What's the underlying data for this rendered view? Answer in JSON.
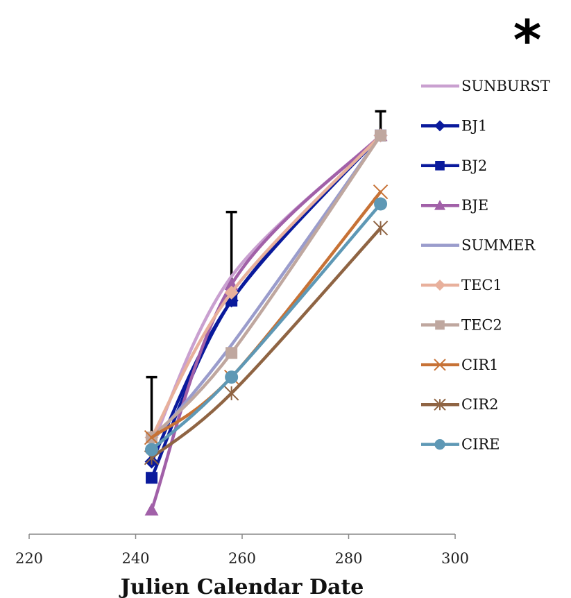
{
  "chart_data": {
    "type": "line",
    "xlabel": "Julien Calendar Date",
    "ylabel": "",
    "xlim": [
      220,
      300
    ],
    "xticks": [
      220,
      240,
      260,
      280,
      300
    ],
    "annotation": "*",
    "grid": false,
    "legend_position": "right",
    "series": [
      {
        "name": "SUNBURST",
        "color": "#C9A0D0",
        "marker": "none",
        "x": [
          243,
          258,
          286
        ],
        "y": [
          0.22,
          0.64,
          0.99
        ]
      },
      {
        "name": "BJ1",
        "color": "#0A1A9C",
        "marker": "diamond",
        "x": [
          243,
          258,
          286
        ],
        "y": [
          0.18,
          0.58,
          0.99
        ]
      },
      {
        "name": "BJ2",
        "color": "#0A1A9C",
        "marker": "square",
        "x": [
          243,
          258,
          286
        ],
        "y": [
          0.14,
          0.58,
          0.99
        ]
      },
      {
        "name": "BJE",
        "color": "#A160A8",
        "marker": "triangle",
        "x": [
          243,
          258,
          286
        ],
        "y": [
          0.06,
          0.62,
          0.99
        ]
      },
      {
        "name": "SUMMER",
        "color": "#9A9CCC",
        "marker": "none",
        "x": [
          243,
          258,
          286
        ],
        "y": [
          0.23,
          0.47,
          0.99
        ]
      },
      {
        "name": "TEC1",
        "color": "#E8B09C",
        "marker": "diamond",
        "x": [
          243,
          258,
          286
        ],
        "y": [
          0.24,
          0.6,
          0.99
        ]
      },
      {
        "name": "TEC2",
        "color": "#BFA79F",
        "marker": "square",
        "x": [
          243,
          258,
          286
        ],
        "y": [
          0.24,
          0.45,
          0.99
        ]
      },
      {
        "name": "CIR1",
        "color": "#C77236",
        "marker": "x",
        "x": [
          243,
          258,
          286
        ],
        "y": [
          0.24,
          0.39,
          0.85
        ]
      },
      {
        "name": "CIR2",
        "color": "#8F6443",
        "marker": "star",
        "x": [
          243,
          258,
          286
        ],
        "y": [
          0.19,
          0.35,
          0.76
        ]
      },
      {
        "name": "CIRE",
        "color": "#5E98B5",
        "marker": "circle",
        "x": [
          243,
          258,
          286
        ],
        "y": [
          0.21,
          0.39,
          0.82
        ]
      }
    ],
    "error_bars": [
      {
        "x": 243,
        "y": 0.24,
        "upper": 0.39
      },
      {
        "x": 258,
        "y": 0.62,
        "upper": 0.8
      },
      {
        "x": 286,
        "y": 0.99,
        "upper": 1.05
      }
    ]
  }
}
